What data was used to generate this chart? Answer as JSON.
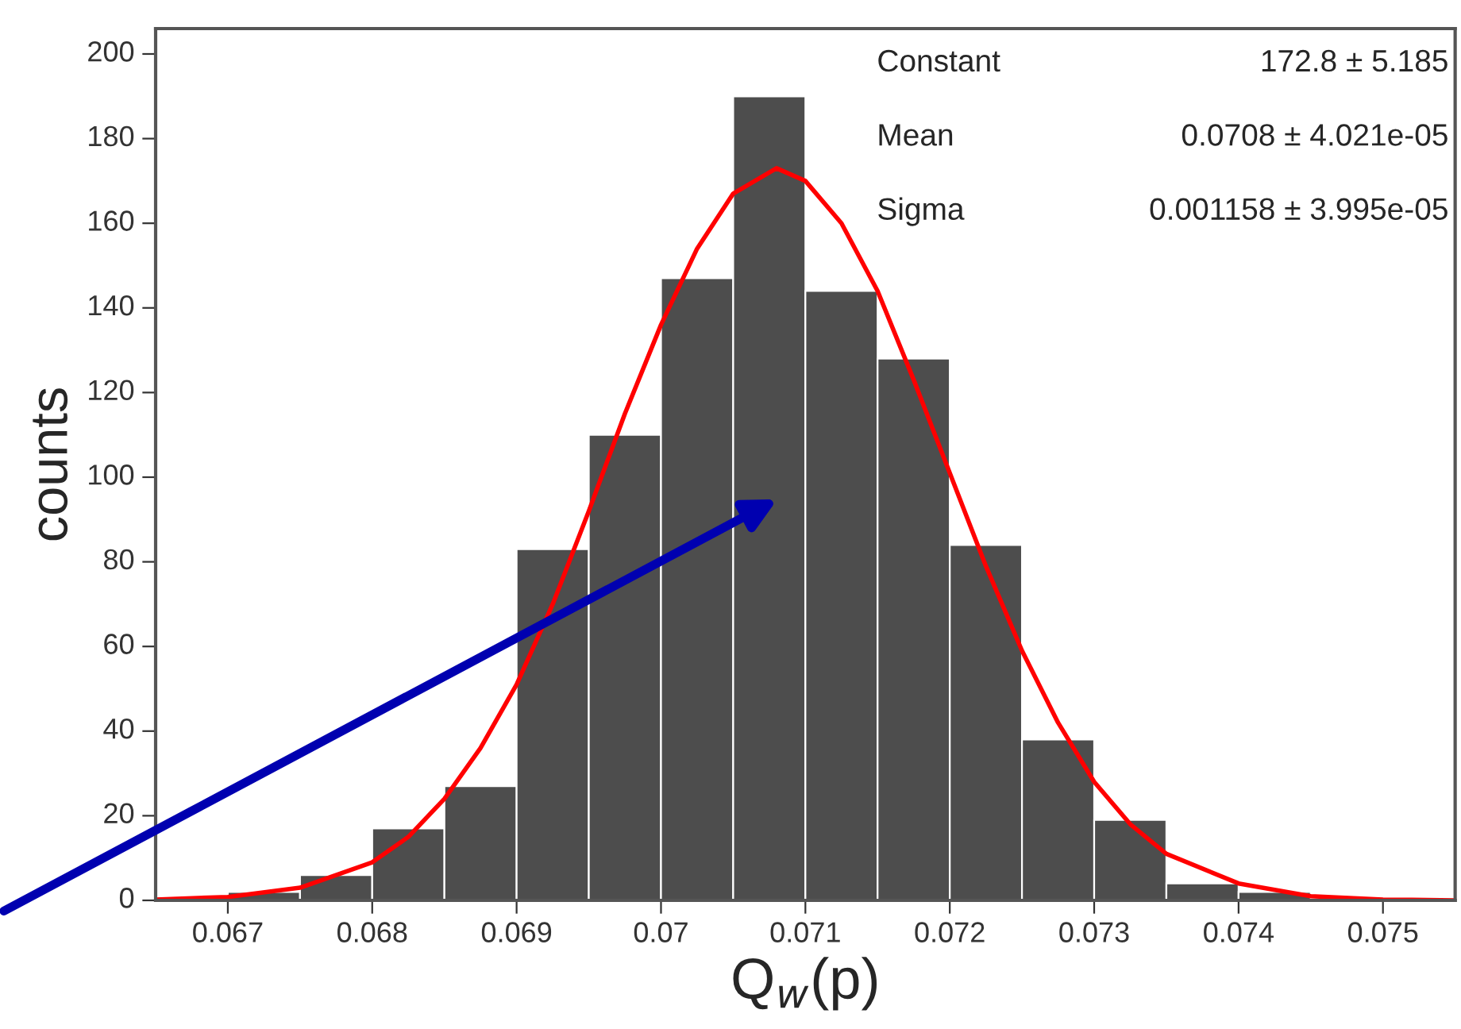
{
  "chart_data": {
    "type": "histogram",
    "xlabel": "Q$_{w}$(p)",
    "ylabel": "counts",
    "bins": [
      0.0665,
      0.067,
      0.0675,
      0.068,
      0.0685,
      0.069,
      0.0695,
      0.07,
      0.0705,
      0.071,
      0.0715,
      0.072,
      0.0725,
      0.073,
      0.0735,
      0.074,
      0.0745,
      0.075,
      0.0755
    ],
    "values": [
      null,
      2,
      6,
      17,
      27,
      83,
      110,
      147,
      190,
      144,
      128,
      84,
      38,
      19,
      4,
      2,
      null,
      0
    ],
    "color": "#4d4d4d",
    "series": [
      {
        "type": "line",
        "color": "#ff0000",
        "x": [
          0.0665,
          0.067,
          0.0675,
          0.068,
          0.06825,
          0.0685,
          0.06875,
          0.069,
          0.06925,
          0.0695,
          0.06975,
          0.07,
          0.07025,
          0.0705,
          0.0708,
          0.071,
          0.07125,
          0.0715,
          0.07175,
          0.072,
          0.07225,
          0.0725,
          0.07275,
          0.073,
          0.07325,
          0.0735,
          0.074,
          0.0745,
          0.075,
          0.0755
        ],
        "values": [
          0.2,
          0.8,
          3,
          9,
          15,
          24,
          36,
          51,
          70,
          92,
          115,
          136,
          154,
          167,
          173,
          170,
          160,
          144,
          123,
          101,
          79,
          59,
          42,
          28,
          18,
          11,
          4,
          1,
          0.2,
          0
        ]
      }
    ],
    "annotations": [
      "Constant",
      "172.8 ± 5.185",
      "Mean",
      "0.0708 ± 4.021e-05",
      "Sigma",
      "0.001158 ± 3.995e-05"
    ],
    "xlim": [
      0.0665,
      0.0755
    ],
    "ylim": [
      0,
      206
    ],
    "xticks": [
      0.067,
      0.068,
      0.069,
      0.07,
      0.071,
      0.072,
      0.073,
      0.074,
      0.075
    ],
    "yticks": [
      0,
      20,
      40,
      60,
      80,
      100,
      120,
      140,
      160,
      180,
      200
    ],
    "grid": false,
    "legend": false
  }
}
